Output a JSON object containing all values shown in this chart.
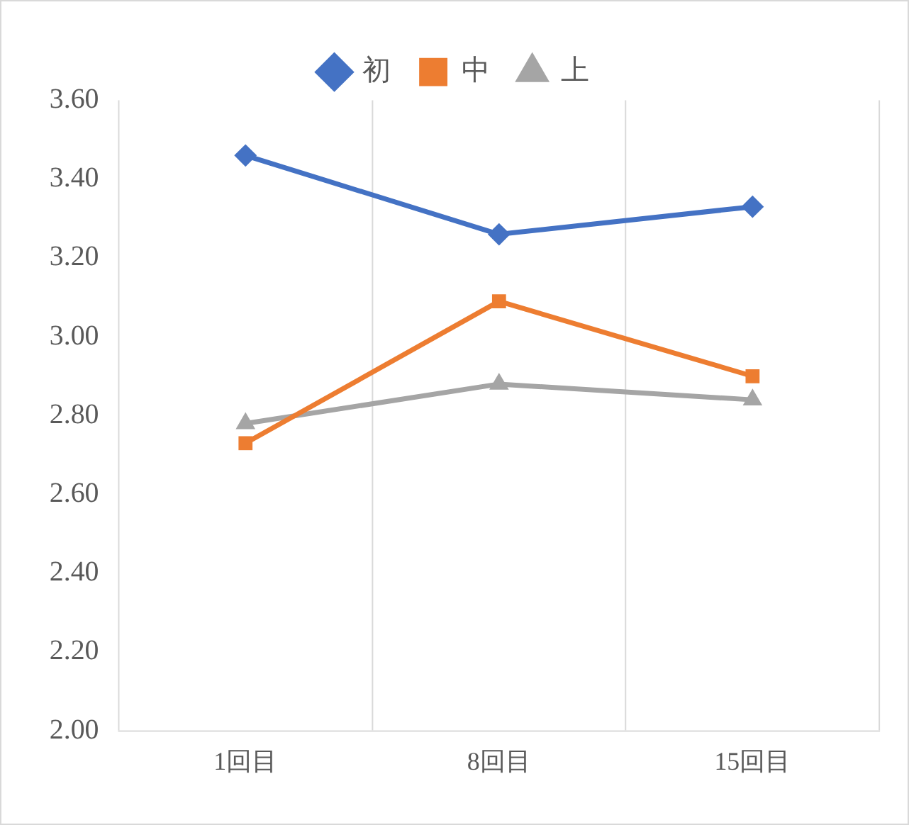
{
  "chart_data": {
    "type": "line",
    "categories": [
      "1回目",
      "8回目",
      "15回目"
    ],
    "series": [
      {
        "name": "初",
        "color": "#4472c4",
        "marker": "diamond",
        "values": [
          3.46,
          3.26,
          3.33
        ]
      },
      {
        "name": "中",
        "color": "#ed7d31",
        "marker": "square",
        "values": [
          2.73,
          3.09,
          2.9
        ]
      },
      {
        "name": "上",
        "color": "#a5a5a5",
        "marker": "triangle",
        "values": [
          2.78,
          2.88,
          2.84
        ]
      }
    ],
    "ylim": [
      2,
      3.6
    ],
    "yticks": [
      {
        "value": 2,
        "label": "2.00"
      },
      {
        "value": 2.2,
        "label": "2.20"
      },
      {
        "value": 2.4,
        "label": "2.40"
      },
      {
        "value": 2.6,
        "label": "2.60"
      },
      {
        "value": 2.8,
        "label": "2.80"
      },
      {
        "value": 3,
        "label": "3.00"
      },
      {
        "value": 3.2,
        "label": "3.20"
      },
      {
        "value": 3.4,
        "label": "3.40"
      },
      {
        "value": 3.6,
        "label": "3.60"
      }
    ],
    "grid": "x",
    "legend": "top",
    "line_style": "solid"
  }
}
